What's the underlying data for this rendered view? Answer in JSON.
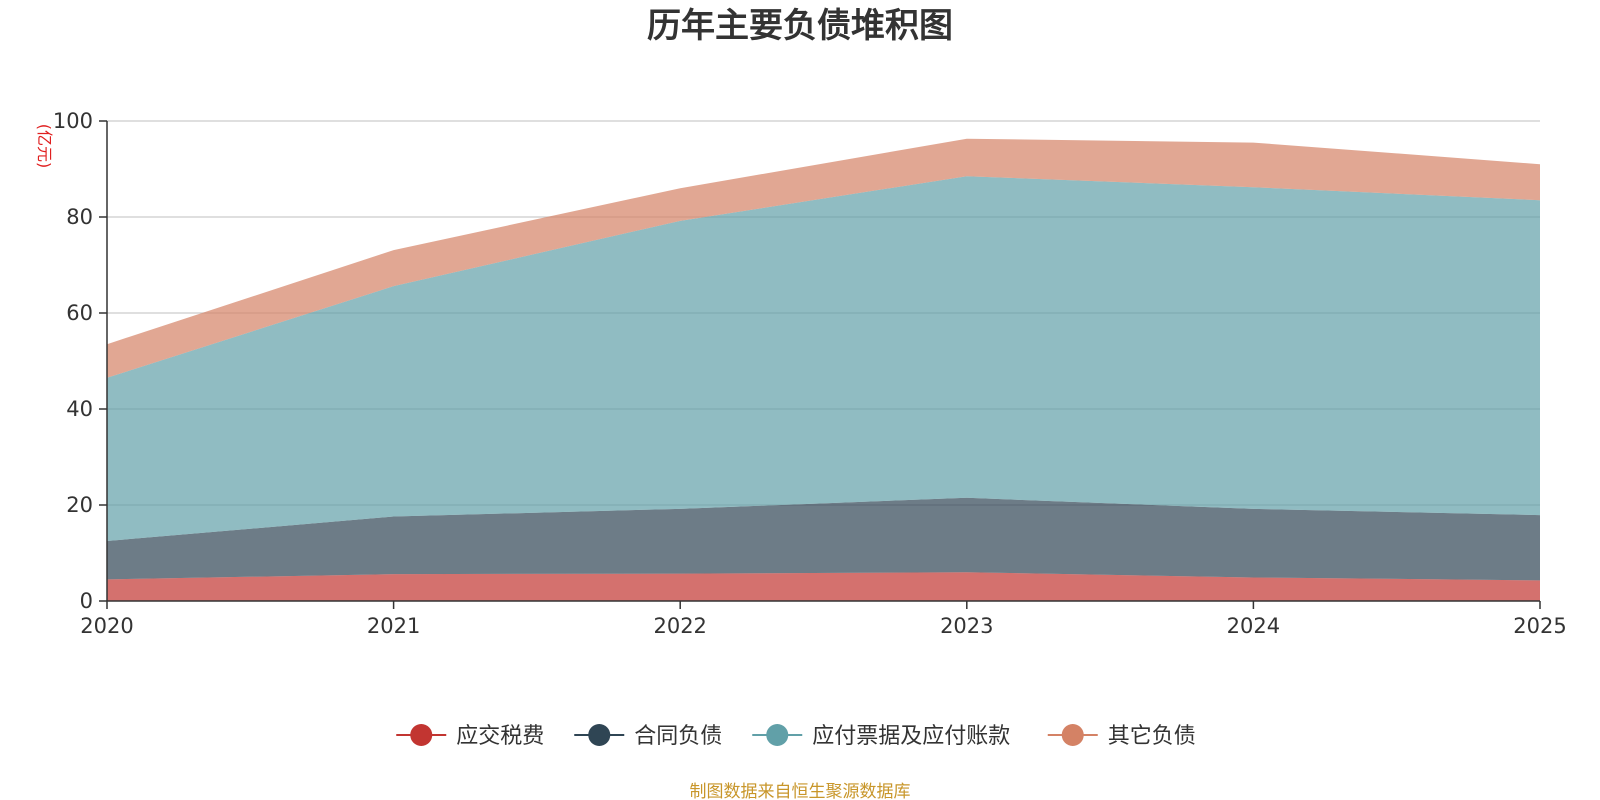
{
  "chart_data": {
    "type": "area",
    "stacked": true,
    "title": "历年主要负债堆积图",
    "unit_label": "(亿元)",
    "x": [
      "2020",
      "2021",
      "2022",
      "2023",
      "2024",
      "2025"
    ],
    "ylim": [
      0,
      100
    ],
    "yticks": [
      0,
      20,
      40,
      60,
      80,
      100
    ],
    "y_tick_labels": [
      "0",
      "20",
      "40",
      "60",
      "80",
      "100"
    ],
    "grid": true,
    "legend_position": "bottom-center",
    "series": [
      {
        "name": "应交税费",
        "color": "#c23531",
        "values": [
          4.5,
          5.6,
          5.7,
          6.0,
          4.9,
          4.3
        ]
      },
      {
        "name": "合同负债",
        "color": "#2f4554",
        "values": [
          8.0,
          12.0,
          13.5,
          15.5,
          14.3,
          13.6
        ]
      },
      {
        "name": "应付票据及应付账款",
        "color": "#61a0a8",
        "values": [
          34.0,
          48.0,
          60.0,
          67.0,
          67.0,
          65.6
        ]
      },
      {
        "name": "其它负债",
        "color": "#d48265",
        "values": [
          7.0,
          7.5,
          6.8,
          7.8,
          9.3,
          7.5
        ]
      }
    ],
    "source_note": "制图数据来自恒生聚源数据库"
  }
}
